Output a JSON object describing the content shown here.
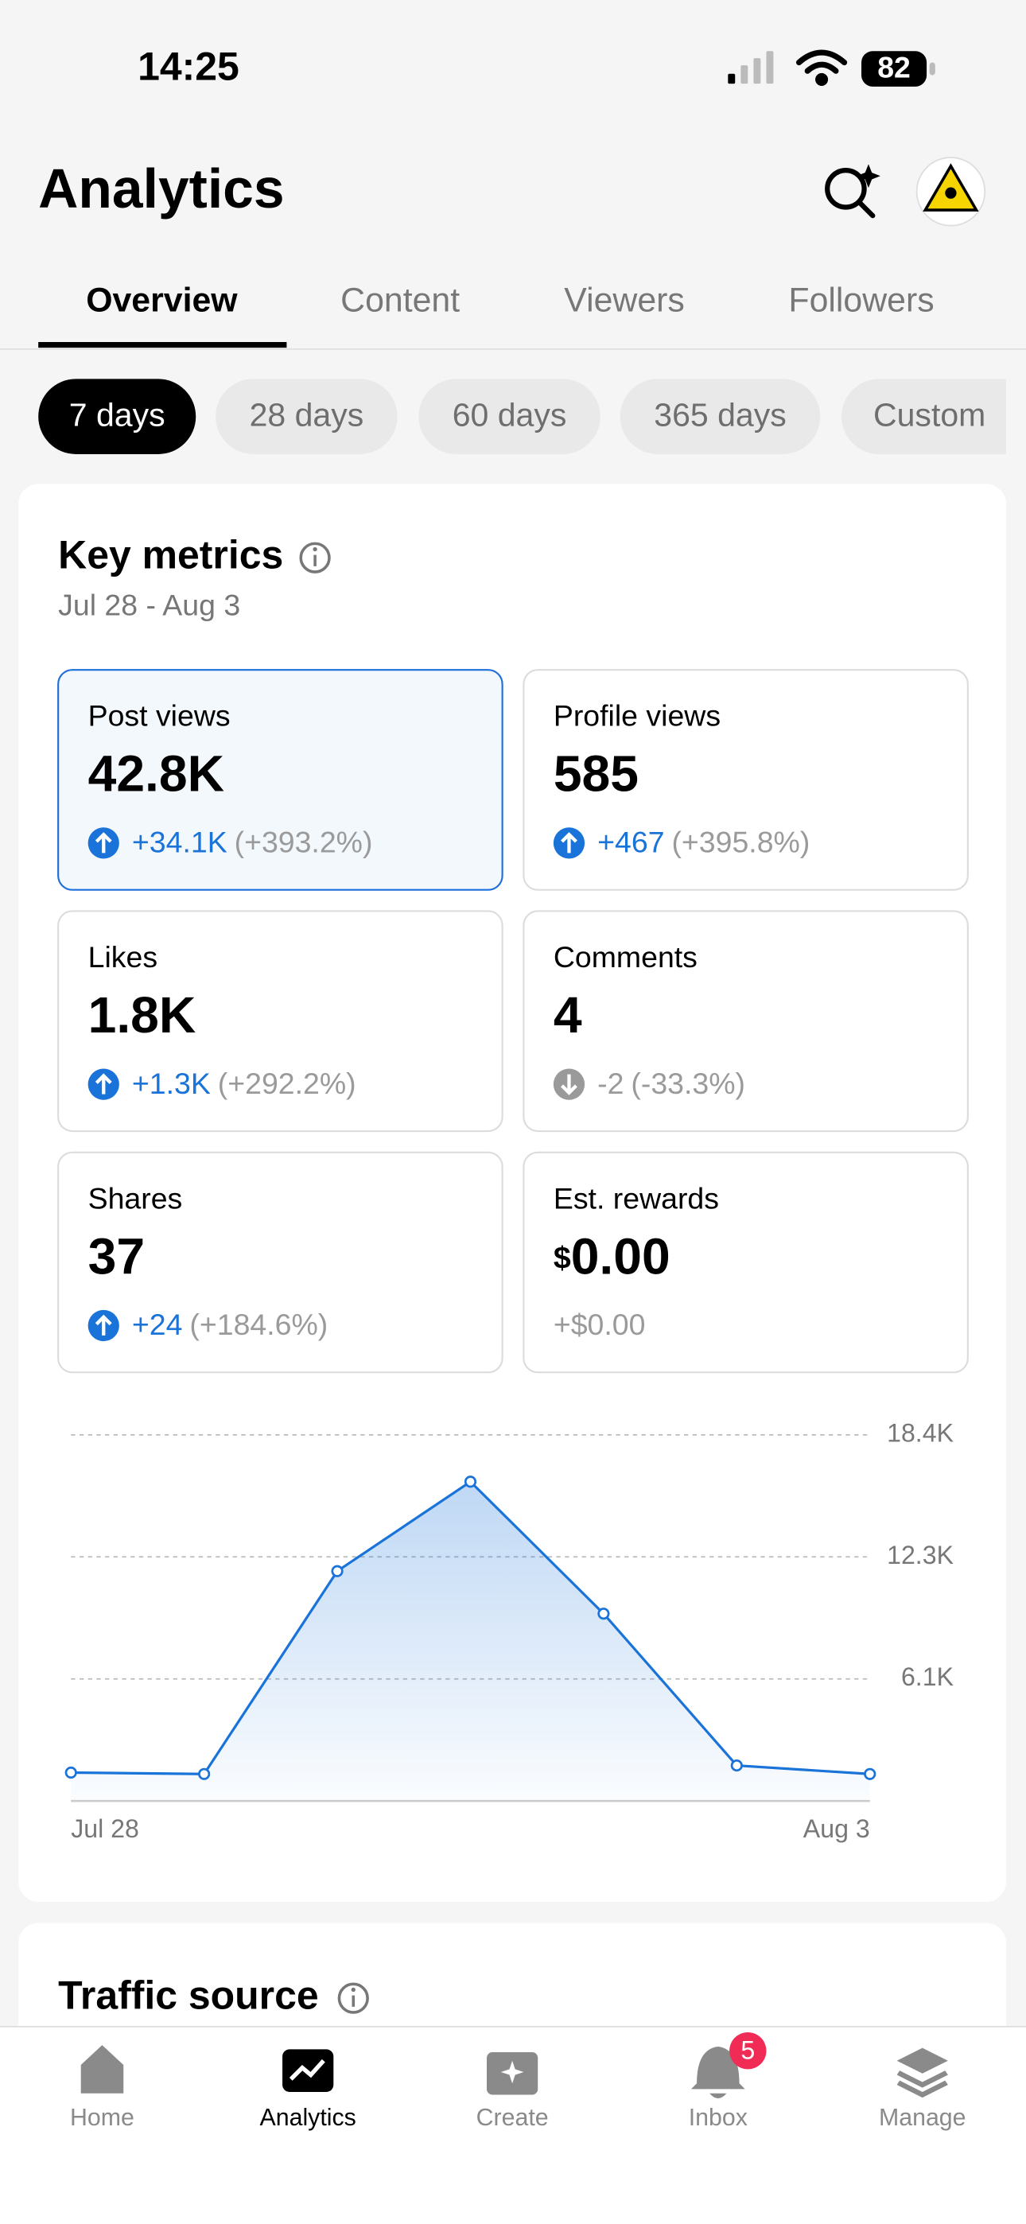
{
  "status_bar": {
    "time": "14:25",
    "battery": "82"
  },
  "header": {
    "title": "Analytics"
  },
  "tabs": [
    "Overview",
    "Content",
    "Viewers",
    "Followers"
  ],
  "range_chips": [
    "7 days",
    "28 days",
    "60 days",
    "365 days",
    "Custom"
  ],
  "key_metrics": {
    "title": "Key metrics",
    "date_range": "Jul 28 - Aug 3",
    "cards": [
      {
        "label": "Post views",
        "value": "42.8K",
        "change": "+34.1K",
        "percent": "(+393.2%)"
      },
      {
        "label": "Profile views",
        "value": "585",
        "change": "+467",
        "percent": "(+395.8%)"
      },
      {
        "label": "Likes",
        "value": "1.8K",
        "change": "+1.3K",
        "percent": "(+292.2%)"
      },
      {
        "label": "Comments",
        "value": "4",
        "change": "-2",
        "percent": "(-33.3%)"
      },
      {
        "label": "Shares",
        "value": "37",
        "change": "+24",
        "percent": "(+184.6%)"
      },
      {
        "label": "Est. rewards",
        "currency": "$",
        "value": "0.00",
        "change": "+$0.00"
      }
    ]
  },
  "chart_data": {
    "type": "line",
    "categories": [
      "Jul 28",
      null,
      null,
      null,
      null,
      null,
      "Aug 3"
    ],
    "values": [
      1426,
      1355,
      11550,
      16045,
      9413,
      1783,
      1355
    ],
    "color": "#1a73d9",
    "ylim": [
      0,
      18400
    ],
    "yticks": [
      {
        "value": 18400,
        "label": "18.4K"
      },
      {
        "value": 12267,
        "label": "12.3K"
      },
      {
        "value": 6133,
        "label": "6.1K"
      }
    ],
    "grid": true
  },
  "traffic_source": {
    "title": "Traffic source"
  },
  "nav": {
    "items": [
      "Home",
      "Analytics",
      "Create",
      "Inbox",
      "Manage"
    ],
    "inbox_badge": "5"
  }
}
